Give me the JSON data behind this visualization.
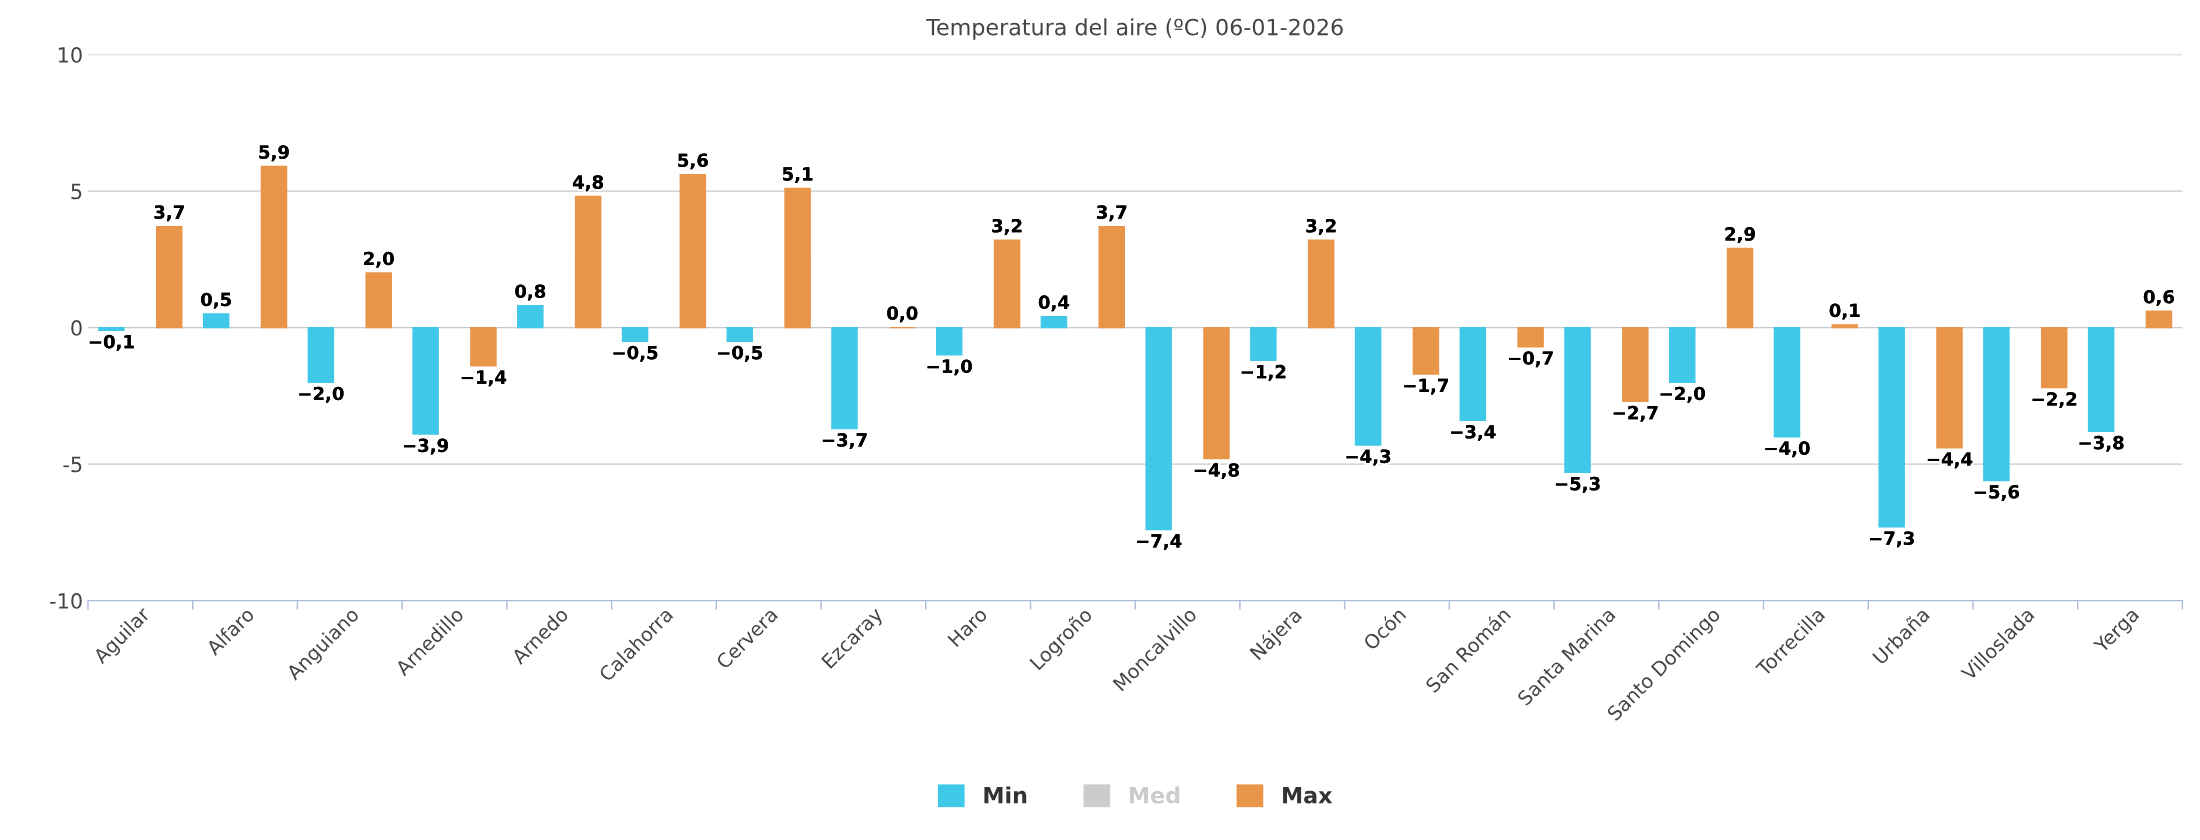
{
  "chart_data": {
    "type": "bar",
    "title": "Temperatura del aire (ºC) 06-01-2026",
    "categories": [
      "Aguilar",
      "Alfaro",
      "Anguiano",
      "Arnedillo",
      "Arnedo",
      "Calahorra",
      "Cervera",
      "Ezcaray",
      "Haro",
      "Logroño",
      "Moncalvillo",
      "Nájera",
      "Ocón",
      "San Román",
      "Santa Marina",
      "Santo Domingo",
      "Torrecilla",
      "Urbaña",
      "Villoslada",
      "Yerga"
    ],
    "series": [
      {
        "name": "Min",
        "color": "#40c8e8",
        "values": [
          -0.1,
          0.5,
          -2.0,
          -3.9,
          0.8,
          -0.5,
          -0.5,
          -3.7,
          -1.0,
          0.4,
          -7.4,
          -1.2,
          -4.3,
          -3.4,
          -5.3,
          -2.0,
          -4.0,
          -7.3,
          -5.6,
          -3.8
        ],
        "value_labels": [
          "−0,1",
          "0,5",
          "−2,0",
          "−3,9",
          "0,8",
          "−0,5",
          "−0,5",
          "−3,7",
          "−1,0",
          "0,4",
          "−7,4",
          "−1,2",
          "−4,3",
          "−3,4",
          "−5,3",
          "−2,0",
          "−4,0",
          "−7,3",
          "−5,6",
          "−3,8"
        ]
      },
      {
        "name": "Med",
        "color": "#cccccc",
        "values": [
          null,
          null,
          null,
          null,
          null,
          null,
          null,
          null,
          null,
          null,
          null,
          null,
          null,
          null,
          null,
          null,
          null,
          null,
          null,
          null
        ]
      },
      {
        "name": "Max",
        "color": "#e8954a",
        "values": [
          3.7,
          5.9,
          2.0,
          -1.4,
          4.8,
          5.6,
          5.1,
          0.0,
          3.2,
          3.7,
          -4.8,
          3.2,
          -1.7,
          -0.7,
          -2.7,
          2.9,
          0.1,
          -4.4,
          -2.2,
          0.6
        ],
        "value_labels": [
          "3,7",
          "5,9",
          "2,0",
          "−1,4",
          "4,8",
          "5,6",
          "5,1",
          "0,0",
          "3,2",
          "3,7",
          "−4,8",
          "3,2",
          "−1,7",
          "−0,7",
          "−2,7",
          "2,9",
          "0,1",
          "−4,4",
          "−2,2",
          "0,6"
        ]
      }
    ],
    "ylim": [
      -10,
      10
    ],
    "yticks": [
      -10,
      -5,
      0,
      5,
      10
    ],
    "grid": "y",
    "legend": "bottom"
  }
}
